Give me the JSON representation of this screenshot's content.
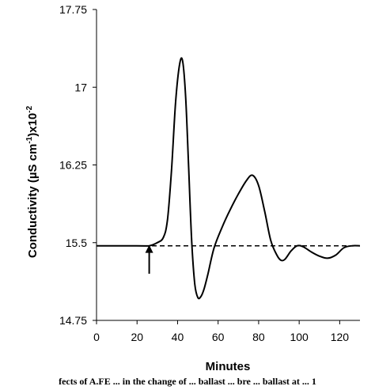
{
  "chart_data": {
    "type": "line",
    "xlabel": "Minutes",
    "ylabel_parts": [
      "Conductivity (µS cm",
      "-1",
      ")x10",
      "-2"
    ],
    "xlim": [
      0,
      130
    ],
    "ylim": [
      14.75,
      17.75
    ],
    "x_ticks": [
      "0",
      "20",
      "40",
      "60",
      "80",
      "100",
      "120"
    ],
    "x_tick_values": [
      0,
      20,
      40,
      60,
      80,
      100,
      120
    ],
    "y_ticks": [
      "14.75",
      "15.5",
      "16.25",
      "17",
      "17.75"
    ],
    "y_tick_values": [
      14.75,
      15.5,
      16.25,
      17,
      17.75
    ],
    "grid": false,
    "legend": "none",
    "series": [
      {
        "style": "solid",
        "color": "#000000",
        "x": [
          0,
          20,
          26,
          30,
          33,
          35,
          37,
          39,
          41,
          42.5,
          44,
          45.5,
          47,
          48.5,
          50,
          51.5,
          53,
          55,
          58,
          62,
          66,
          70,
          74,
          77,
          80,
          83,
          86,
          89,
          91,
          93,
          96,
          99,
          102,
          106,
          110,
          114,
          118,
          122,
          126,
          130
        ],
        "y": [
          15.47,
          15.47,
          15.47,
          15.5,
          15.55,
          15.72,
          16.2,
          16.85,
          17.22,
          17.25,
          16.9,
          16.2,
          15.5,
          15.1,
          14.97,
          14.98,
          15.05,
          15.2,
          15.45,
          15.65,
          15.82,
          15.97,
          16.1,
          16.15,
          16.05,
          15.8,
          15.52,
          15.38,
          15.33,
          15.34,
          15.42,
          15.47,
          15.46,
          15.41,
          15.37,
          15.35,
          15.38,
          15.45,
          15.47,
          15.47
        ]
      },
      {
        "style": "dashed",
        "color": "#000000",
        "x": [
          0,
          130
        ],
        "y": [
          15.47,
          15.47
        ]
      }
    ],
    "annotations": [
      {
        "type": "arrow",
        "x": 26,
        "y_from": 15.2,
        "y_to": 15.47
      }
    ]
  },
  "caption": "fects of A.FE ... in the change of ... ballast ... bre ... ballast at ... 1"
}
